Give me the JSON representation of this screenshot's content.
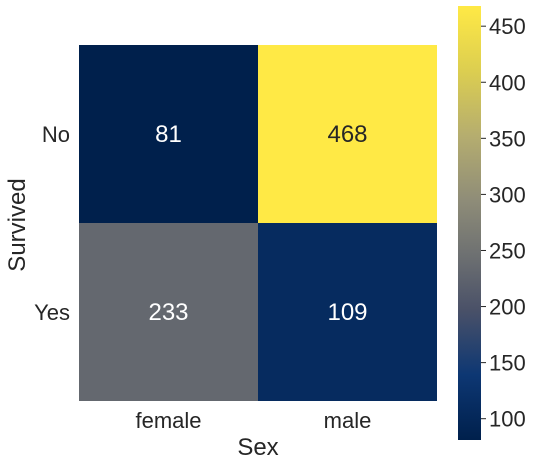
{
  "chart_data": {
    "type": "heatmap",
    "title": "",
    "xlabel": "Sex",
    "ylabel": "Survived",
    "x_categories": [
      "female",
      "male"
    ],
    "y_categories": [
      "No",
      "Yes"
    ],
    "values": [
      [
        81,
        468
      ],
      [
        233,
        109
      ]
    ],
    "colormap": "cividis",
    "colorbar": {
      "range": [
        81,
        468
      ],
      "ticks": [
        100,
        150,
        200,
        250,
        300,
        350,
        400,
        450
      ],
      "tick_labels": [
        "100",
        "150",
        "200",
        "250",
        "300",
        "350",
        "400",
        "450"
      ]
    },
    "annotation_colors": {
      "dark_cell": "#ffffff",
      "light_cell": "#262626"
    }
  }
}
